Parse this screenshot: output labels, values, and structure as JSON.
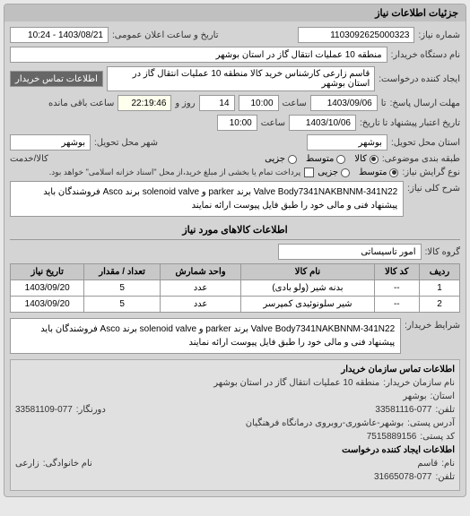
{
  "panel_title": "جزئیات اطلاعات نیاز",
  "request_number": {
    "label": "شماره نیاز:",
    "value": "1103092625000323"
  },
  "announce_date": {
    "label": "تاریخ و ساعت اعلان عمومی:",
    "value": "1403/08/21 - 10:24"
  },
  "buyer_device": {
    "label": "نام دستگاه خریدار:",
    "value": "منطقه 10 عملیات انتقال گاز در استان بوشهر"
  },
  "requester": {
    "label": "ایجاد کننده درخواست:",
    "value": "قاسم زارعی کارشناس خرید کالا منطقه 10 عملیات انتقال گاز در استان بوشهر"
  },
  "buyer_contact": {
    "label": "اطلاعات تماس خریدار"
  },
  "deadline_send": {
    "label": "مهلت ارسال پاسخ:",
    "to_label": "تا",
    "date": "1403/09/06",
    "time_label": "ساعت",
    "time": "10:00",
    "days": "14",
    "days_label": "روز و",
    "remaining": "22:19:46",
    "remaining_label": "ساعت باقی مانده"
  },
  "deadline_receive": {
    "label": "تاریخ اعتبار پیشنهاد تا تاریخ:",
    "date": "1403/10/06",
    "time_label": "ساعت",
    "time": "10:00"
  },
  "delivery_province": {
    "label": "استان محل تحویل:",
    "value": "بوشهر"
  },
  "delivery_city": {
    "label": "شهر محل تحویل:",
    "value": "بوشهر"
  },
  "class_type": {
    "label": "طبقه بندی موضوعی:",
    "options": [
      "کالا",
      "متوسط",
      "جزیی"
    ],
    "selected": 0,
    "sub_label": "کالا/خدمت"
  },
  "buyer_type": {
    "label": "نوع گرایش نیاز:",
    "options": [
      "متوسط",
      "جزیی"
    ],
    "selected": 0,
    "note": "پرداخت تمام یا بخشی از مبلغ خرید،از محل \"اسناد خزانه اسلامی\" خواهد بود.",
    "checkbox_label": ""
  },
  "general_desc": {
    "label": "شرح کلی نیاز:",
    "text": "Valve Body7341NAKBNNM-341N22 برند parker و solenoid valve برند Asco فروشندگان باید پیشنهاد فنی و مالی خود را طبق فایل پیوست ارائه نمایند"
  },
  "goods_section": "اطلاعات کالاهای مورد نیاز",
  "goods_group": {
    "label": "گروه کالا:",
    "value": "امور تاسیساتی"
  },
  "table": {
    "headers": [
      "ردیف",
      "کد کالا",
      "نام کالا",
      "واحد شمارش",
      "تعداد / مقدار",
      "تاریخ نیاز"
    ],
    "rows": [
      [
        "1",
        "--",
        "بدنه شیر (ولو بادی)",
        "عدد",
        "5",
        "1403/09/20"
      ],
      [
        "2",
        "--",
        "شیر سلونوئیدی کمپرسر",
        "عدد",
        "5",
        "1403/09/20"
      ]
    ]
  },
  "buyer_conditions": {
    "label": "شرایط خریدار:",
    "text": "Valve Body7341NAKBNNM-341N22 برند parker و solenoid valve برند Asco فروشندگان باید پیشنهاد فنی و مالی خود را طبق فایل پیوست ارائه نمایند"
  },
  "org_section": "اطلاعات تماس سازمان خریدار",
  "org": {
    "name": {
      "label": "نام سازمان خریدار:",
      "value": "منطقه 10 عملیات انتقال گاز در استان بوشهر"
    },
    "province": {
      "label": "استان:",
      "value": "بوشهر"
    },
    "phone": {
      "label": "تلفن:",
      "value": "33581116-077"
    },
    "address": {
      "label": "آدرس پستی:",
      "value": "بوشهر-عاشوری-روبروی درمانگاه فرهنگیان"
    },
    "fax": {
      "label": "دورنگار:",
      "value": "33581109-077"
    },
    "postal": {
      "label": "کد پستی:",
      "value": "7515889156"
    },
    "creator_section": "اطلاعات ایجاد کننده درخواست",
    "creator_name": {
      "label": "نام:",
      "value": "قاسم"
    },
    "creator_family": {
      "label": "نام خانوادگی:",
      "value": "زارعی"
    },
    "creator_phone": {
      "label": "تلفن:",
      "value": "31665078-077"
    }
  }
}
